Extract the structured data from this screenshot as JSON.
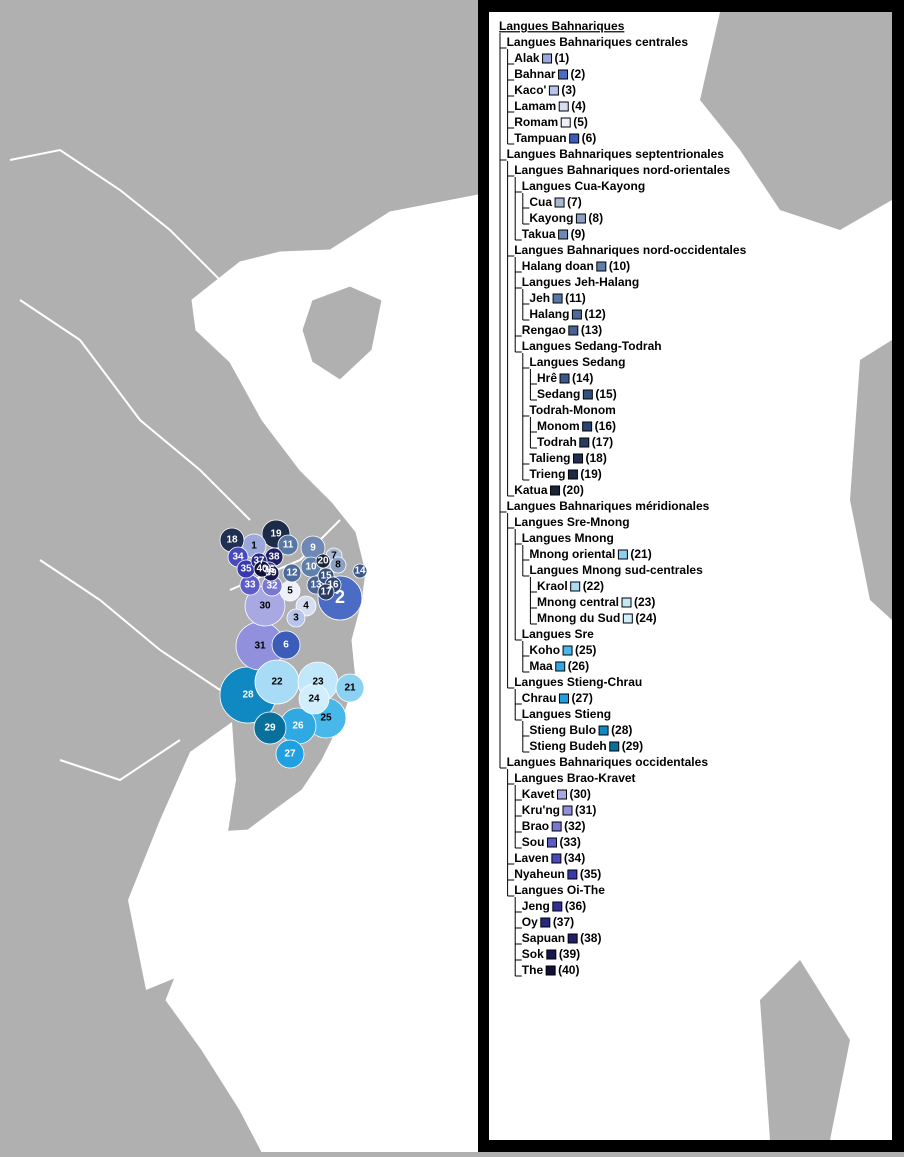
{
  "legend": {
    "title": "Langues Bahnariques",
    "children": [
      {
        "label": "Langues Bahnariques centrales",
        "children": [
          {
            "label": "Alak",
            "code": "(1)",
            "color": "#9aa8dc"
          },
          {
            "label": "Bahnar",
            "code": "(2)",
            "color": "#4a6cc4"
          },
          {
            "label": "Kaco'",
            "code": "(3)",
            "color": "#b8c4ea"
          },
          {
            "label": "Lamam",
            "code": "(4)",
            "color": "#d8def2"
          },
          {
            "label": "Romam",
            "code": "(5)",
            "color": "#eef0fa"
          },
          {
            "label": "Tampuan",
            "code": "(6)",
            "color": "#3c5cba"
          }
        ]
      },
      {
        "label": "Langues Bahnariques septentrionales",
        "children": [
          {
            "label": "Langues Bahnariques nord-orientales",
            "children": [
              {
                "label": "Langues Cua-Kayong",
                "children": [
                  {
                    "label": "Cua",
                    "code": "(7)",
                    "color": "#a8b8d4"
                  },
                  {
                    "label": "Kayong",
                    "code": "(8)",
                    "color": "#8ca0c4"
                  }
                ]
              },
              {
                "label": "Takua",
                "code": "(9)",
                "color": "#7088b4"
              }
            ]
          },
          {
            "label": "Langues Bahnariques nord-occidentales",
            "children": [
              {
                "label": "Halang doan",
                "code": "(10)",
                "color": "#6080ac"
              },
              {
                "label": "Langues Jeh-Halang",
                "children": [
                  {
                    "label": "Jeh",
                    "code": "(11)",
                    "color": "#5878a4"
                  },
                  {
                    "label": "Halang",
                    "code": "(12)",
                    "color": "#4c6a9c"
                  }
                ]
              },
              {
                "label": "Rengao",
                "code": "(13)",
                "color": "#486294"
              },
              {
                "label": "Langues Sedang-Todrah",
                "children": [
                  {
                    "label": "Langues Sedang",
                    "children": [
                      {
                        "label": "Hrê",
                        "code": "(14)",
                        "color": "#3c588a"
                      },
                      {
                        "label": "Sedang",
                        "code": "(15)",
                        "color": "#34507e"
                      }
                    ]
                  },
                  {
                    "label": "Todrah-Monom",
                    "children": [
                      {
                        "label": "Monom",
                        "code": "(16)",
                        "color": "#2c4472"
                      },
                      {
                        "label": "Todrah",
                        "code": "(17)",
                        "color": "#283c62"
                      }
                    ]
                  },
                  {
                    "label": "Talieng",
                    "code": "(18)",
                    "color": "#203052"
                  },
                  {
                    "label": "Trieng",
                    "code": "(19)",
                    "color": "#1c2c48"
                  }
                ]
              }
            ]
          },
          {
            "label": "Katua",
            "code": "(20)",
            "color": "#182438"
          }
        ]
      },
      {
        "label": "Langues Bahnariques méridionales",
        "children": [
          {
            "label": "Langues Sre-Mnong",
            "children": [
              {
                "label": "Langues Mnong",
                "children": [
                  {
                    "label": "Mnong oriental",
                    "code": "(21)",
                    "color": "#8cd0f2"
                  },
                  {
                    "label": "Langues Mnong sud-centrales",
                    "children": [
                      {
                        "label": "Kraol",
                        "code": "(22)",
                        "color": "#a8dcf6"
                      },
                      {
                        "label": "Mnong central",
                        "code": "(23)",
                        "color": "#c0e8fa"
                      },
                      {
                        "label": "Mnong du Sud",
                        "code": "(24)",
                        "color": "#d0eefc"
                      }
                    ]
                  }
                ]
              },
              {
                "label": "Langues Sre",
                "children": [
                  {
                    "label": "Koho",
                    "code": "(25)",
                    "color": "#48b8ea"
                  },
                  {
                    "label": "Maa",
                    "code": "(26)",
                    "color": "#30a8e2"
                  }
                ]
              }
            ]
          },
          {
            "label": "Langues Stieng-Chrau",
            "children": [
              {
                "label": "Chrau",
                "code": "(27)",
                "color": "#20a0e0"
              },
              {
                "label": "Langues Stieng",
                "children": [
                  {
                    "label": "Stieng Bulo",
                    "code": "(28)",
                    "color": "#1088c2"
                  },
                  {
                    "label": "Stieng Budeh",
                    "code": "(29)",
                    "color": "#08709a"
                  }
                ]
              }
            ]
          }
        ]
      },
      {
        "label": "Langues Bahnariques occidentales",
        "children": [
          {
            "label": "Langues Brao-Kravet",
            "children": [
              {
                "label": "Kavet",
                "code": "(30)",
                "color": "#a8a8e2"
              },
              {
                "label": "Kru'ng",
                "code": "(31)",
                "color": "#9090dc"
              },
              {
                "label": "Brao",
                "code": "(32)",
                "color": "#7878d2"
              },
              {
                "label": "Sou",
                "code": "(33)",
                "color": "#5c5cc8"
              }
            ]
          },
          {
            "label": "Laven",
            "code": "(34)",
            "color": "#4848c0"
          },
          {
            "label": "Nyaheun",
            "code": "(35)",
            "color": "#3838b0"
          },
          {
            "label": "Langues Oi-The",
            "children": [
              {
                "label": "Jeng",
                "code": "(36)",
                "color": "#303098"
              },
              {
                "label": "Oy",
                "code": "(37)",
                "color": "#282880"
              },
              {
                "label": "Sapuan",
                "code": "(38)",
                "color": "#202068"
              },
              {
                "label": "Sok",
                "code": "(39)",
                "color": "#181850"
              },
              {
                "label": "The",
                "code": "(40)",
                "color": "#101038"
              }
            ]
          }
        ]
      }
    ]
  },
  "map_labels": [
    "1",
    "2",
    "3",
    "4",
    "5",
    "6",
    "7",
    "8",
    "9",
    "10",
    "11",
    "12",
    "13",
    "14",
    "15",
    "16",
    "17",
    "18",
    "19",
    "20",
    "21",
    "22",
    "23",
    "24",
    "25",
    "26",
    "27",
    "28",
    "29",
    "30",
    "31",
    "32",
    "33",
    "34",
    "35",
    "36",
    "37",
    "38",
    "39",
    "40"
  ]
}
